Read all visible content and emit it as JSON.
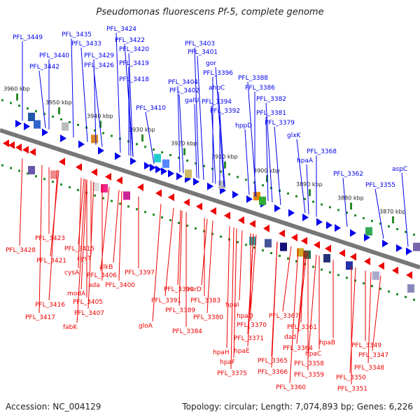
{
  "header": {
    "title": "Pseudomonas fluorescens Pf-5, complete genome"
  },
  "footer": {
    "accession": "Accession: NC_004129",
    "stats": "Topology: circular; Length: 7,074,893 bp; Genes: 6,226"
  },
  "colors": {
    "forward": "#0000ee",
    "reverse": "#ee0000",
    "backbone": "#777777",
    "tick_dot": "#228b22"
  },
  "coordinate_labels": [
    "3960 kbp",
    "3950 kbp",
    "3940 kbp",
    "3930 kbp",
    "3920 kbp",
    "3910 kbp",
    "3900 kbp",
    "3890 kbp",
    "3880 kbp",
    "3870 kbp"
  ],
  "forward_genes": [
    "PFL_3449",
    "PFL_3435",
    "PFL_3424",
    "PFL_3433",
    "PFL_3422",
    "PFL_3440",
    "PFL_3429",
    "PFL_3420",
    "PFL_3442",
    "PFL_3426",
    "PFL_3419",
    "PFL_3418",
    "PFL_3403",
    "PFL_3401",
    "gor",
    "PFL_3396",
    "PFL_3404",
    "PFL_3402",
    "ahpC",
    "PFL_3388",
    "PFL_3386",
    "galU",
    "PFL_3394",
    "PFL_3382",
    "PFL_3410",
    "PFL_3392",
    "PFL_3381",
    "hppD",
    "PFL_3379",
    "glxK",
    "PFL_3368",
    "hpaA",
    "PFL_3362",
    "aspC",
    "PFL_3355"
  ],
  "reverse_genes": [
    "PFL_3423",
    "PFL_3428",
    "PFL_3415",
    "PFL_3421",
    "cysT",
    "cysA",
    "alkB",
    "PFL_3406",
    "ada",
    "PFL_3400",
    "modA",
    "PFL_3416",
    "PFL_3405",
    "PFL_3417",
    "PFL_3407",
    "fabK",
    "PFL_3397",
    "PFL_3390",
    "rarD",
    "PFL_3391",
    "PFL_3383",
    "PFL_3389",
    "PFL_3380",
    "gloA",
    "PFL_3384",
    "hpaI",
    "hpaD",
    "PFL_3367",
    "PFL_3370",
    "PFL_3361",
    "PFL_3371",
    "dad",
    "hpaB",
    "hpaH",
    "hpaE",
    "PFL_3364",
    "hpaC",
    "hpaF",
    "PFL_3365",
    "PFL_3358",
    "PFL_3349",
    "PFL_3375",
    "PFL_3366",
    "PFL_3347",
    "PFL_3359",
    "PFL_3348",
    "PFL_3350",
    "PFL_3360",
    "PFL_3351"
  ]
}
